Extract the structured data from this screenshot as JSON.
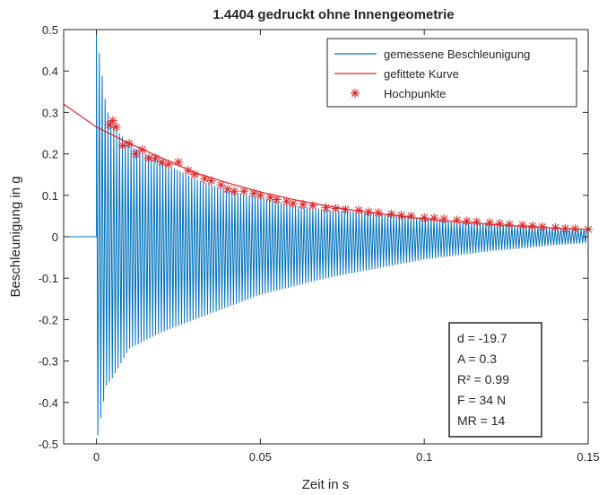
{
  "chart_data": {
    "type": "line",
    "title": "1.4404 gedruckt ohne Innengeometrie",
    "xlabel": "Zeit in s",
    "ylabel": "Beschleunigung in g",
    "xlim": [
      -0.01,
      0.15
    ],
    "ylim": [
      -0.5,
      0.5
    ],
    "grid": false,
    "x_ticks": [
      0,
      0.05,
      0.1,
      0.15
    ],
    "x_tick_labels": [
      "0",
      "0.05",
      "0.1",
      "0.15"
    ],
    "y_ticks": [
      -0.5,
      -0.4,
      -0.3,
      -0.2,
      -0.1,
      0,
      0.1,
      0.2,
      0.3,
      0.4,
      0.5
    ],
    "y_tick_labels": [
      "-0.5",
      "-0.4",
      "-0.3",
      "-0.2",
      "-0.1",
      "0",
      "0.1",
      "0.2",
      "0.3",
      "0.4",
      "0.5"
    ],
    "legend_position": "top-right",
    "series": [
      {
        "name": "gemessene Beschleunigung",
        "kind": "line",
        "color": "#0072BD",
        "signal": {
          "start": 0.0,
          "end": 0.15,
          "period": 0.00088,
          "x": [
            0.0,
            0.003,
            0.005,
            0.01,
            0.02,
            0.03,
            0.04,
            0.05,
            0.06,
            0.07,
            0.08,
            0.09,
            0.1,
            0.11,
            0.12,
            0.13,
            0.14,
            0.15
          ],
          "upper": [
            0.5,
            0.31,
            0.27,
            0.22,
            0.18,
            0.14,
            0.11,
            0.095,
            0.075,
            0.065,
            0.06,
            0.05,
            0.045,
            0.035,
            0.03,
            0.025,
            0.02,
            0.018
          ],
          "lower": [
            -0.5,
            -0.36,
            -0.34,
            -0.27,
            -0.23,
            -0.2,
            -0.17,
            -0.14,
            -0.12,
            -0.1,
            -0.085,
            -0.07,
            -0.055,
            -0.045,
            -0.035,
            -0.028,
            -0.02,
            -0.015
          ]
        }
      },
      {
        "name": "gefittete Kurve",
        "kind": "line",
        "color": "#E0282C",
        "x": [
          -0.01,
          0.0,
          0.01,
          0.02,
          0.03,
          0.04,
          0.05,
          0.06,
          0.07,
          0.08,
          0.09,
          0.1,
          0.11,
          0.12,
          0.13,
          0.14,
          0.15
        ],
        "y": [
          0.32,
          0.265,
          0.225,
          0.19,
          0.155,
          0.13,
          0.108,
          0.09,
          0.075,
          0.062,
          0.052,
          0.043,
          0.036,
          0.03,
          0.025,
          0.021,
          0.018
        ]
      },
      {
        "name": "Hochpunkte",
        "kind": "marker",
        "color": "#E0282C",
        "x": [
          0.004,
          0.005,
          0.006,
          0.008,
          0.01,
          0.012,
          0.014,
          0.016,
          0.018,
          0.02,
          0.022,
          0.025,
          0.028,
          0.03,
          0.033,
          0.035,
          0.038,
          0.04,
          0.042,
          0.045,
          0.048,
          0.05,
          0.053,
          0.055,
          0.058,
          0.06,
          0.063,
          0.066,
          0.07,
          0.073,
          0.076,
          0.08,
          0.083,
          0.086,
          0.09,
          0.093,
          0.096,
          0.1,
          0.103,
          0.106,
          0.11,
          0.113,
          0.116,
          0.12,
          0.123,
          0.126,
          0.13,
          0.133,
          0.136,
          0.14,
          0.143,
          0.146,
          0.15
        ],
        "y": [
          0.27,
          0.28,
          0.265,
          0.22,
          0.225,
          0.2,
          0.21,
          0.19,
          0.19,
          0.18,
          0.175,
          0.18,
          0.16,
          0.15,
          0.14,
          0.135,
          0.125,
          0.115,
          0.11,
          0.11,
          0.105,
          0.1,
          0.095,
          0.09,
          0.085,
          0.08,
          0.078,
          0.075,
          0.07,
          0.068,
          0.066,
          0.064,
          0.06,
          0.058,
          0.055,
          0.052,
          0.05,
          0.046,
          0.045,
          0.043,
          0.04,
          0.038,
          0.036,
          0.034,
          0.032,
          0.03,
          0.028,
          0.026,
          0.024,
          0.022,
          0.02,
          0.019,
          0.018
        ]
      }
    ],
    "annotation": {
      "lines": [
        "d = -19.7",
        "A = 0.3",
        "R² = 0.99",
        "F = 34 N",
        "MR = 14"
      ]
    }
  }
}
